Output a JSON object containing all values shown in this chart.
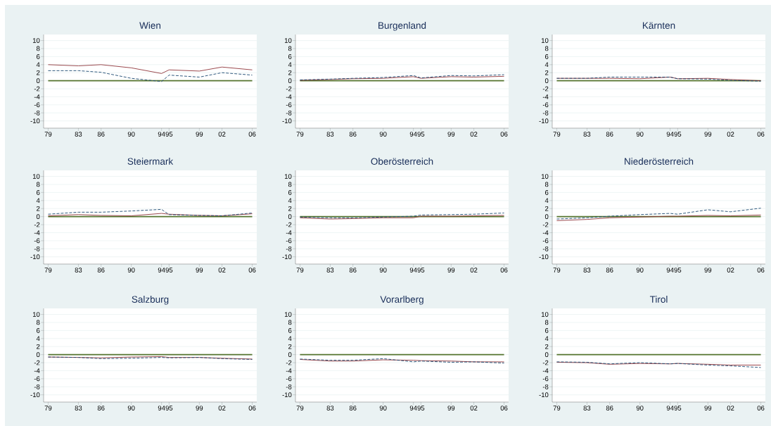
{
  "chart_data": [
    {
      "type": "line",
      "title": "Wien",
      "x": [
        1979,
        1983,
        1986,
        1990,
        1994,
        1995,
        1999,
        2002,
        2006
      ],
      "xlim": [
        1978.4,
        2006.6
      ],
      "xticks": [
        {
          "value": 1979,
          "label": "79"
        },
        {
          "value": 1983,
          "label": "83"
        },
        {
          "value": 1986,
          "label": "86"
        },
        {
          "value": 1990,
          "label": "90"
        },
        {
          "value": 1994,
          "label": "94"
        },
        {
          "value": 1995,
          "label": "95"
        },
        {
          "value": 1999,
          "label": "99"
        },
        {
          "value": 2002,
          "label": "02"
        },
        {
          "value": 2006,
          "label": "06"
        }
      ],
      "ylim": [
        -11.8,
        11.5
      ],
      "yticks": [
        -10,
        -8,
        -6,
        -4,
        -2,
        0,
        2,
        4,
        6,
        8,
        10
      ],
      "grid": "y",
      "series": [
        {
          "color": "#90353b",
          "line_style": "solid",
          "values": [
            4.0,
            3.7,
            4.0,
            3.2,
            1.8,
            2.7,
            2.4,
            3.4,
            2.7
          ]
        },
        {
          "color": "#1a476f",
          "line_style": "dashed",
          "values": [
            2.5,
            2.5,
            2.1,
            0.6,
            -0.2,
            1.4,
            0.9,
            2.0,
            1.4
          ]
        }
      ],
      "ref_lines": [
        {
          "axis": "y",
          "value": 0,
          "color": "#55752f"
        }
      ]
    },
    {
      "type": "line",
      "title": "Burgenland",
      "x": [
        1979,
        1983,
        1986,
        1990,
        1994,
        1995,
        1999,
        2002,
        2006
      ],
      "xlim": [
        1978.4,
        2006.6
      ],
      "xticks": [
        {
          "value": 1979,
          "label": "79"
        },
        {
          "value": 1983,
          "label": "83"
        },
        {
          "value": 1986,
          "label": "86"
        },
        {
          "value": 1990,
          "label": "90"
        },
        {
          "value": 1994,
          "label": "94"
        },
        {
          "value": 1995,
          "label": "95"
        },
        {
          "value": 1999,
          "label": "99"
        },
        {
          "value": 2002,
          "label": "02"
        },
        {
          "value": 2006,
          "label": "06"
        }
      ],
      "ylim": [
        -11.8,
        11.5
      ],
      "yticks": [
        -10,
        -8,
        -6,
        -4,
        -2,
        0,
        2,
        4,
        6,
        8,
        10
      ],
      "grid": "y",
      "series": [
        {
          "color": "#90353b",
          "line_style": "solid",
          "values": [
            0.1,
            0.3,
            0.5,
            0.6,
            1.0,
            0.6,
            1.0,
            0.9,
            1.1
          ]
        },
        {
          "color": "#1a476f",
          "line_style": "dashed",
          "values": [
            0.2,
            0.4,
            0.6,
            0.8,
            1.3,
            0.7,
            1.3,
            1.2,
            1.5
          ]
        }
      ],
      "ref_lines": [
        {
          "axis": "y",
          "value": 0,
          "color": "#55752f"
        }
      ]
    },
    {
      "type": "line",
      "title": "Kärnten",
      "x": [
        1979,
        1983,
        1986,
        1990,
        1994,
        1995,
        1999,
        2002,
        2006
      ],
      "xlim": [
        1978.4,
        2006.6
      ],
      "xticks": [
        {
          "value": 1979,
          "label": "79"
        },
        {
          "value": 1983,
          "label": "83"
        },
        {
          "value": 1986,
          "label": "86"
        },
        {
          "value": 1990,
          "label": "90"
        },
        {
          "value": 1994,
          "label": "94"
        },
        {
          "value": 1995,
          "label": "95"
        },
        {
          "value": 1999,
          "label": "99"
        },
        {
          "value": 2002,
          "label": "02"
        },
        {
          "value": 2006,
          "label": "06"
        }
      ],
      "ylim": [
        -11.8,
        11.5
      ],
      "yticks": [
        -10,
        -8,
        -6,
        -4,
        -2,
        0,
        2,
        4,
        6,
        8,
        10
      ],
      "grid": "y",
      "series": [
        {
          "color": "#90353b",
          "line_style": "solid",
          "values": [
            0.6,
            0.6,
            0.6,
            0.5,
            0.9,
            0.5,
            0.6,
            0.3,
            0.0
          ]
        },
        {
          "color": "#1a476f",
          "line_style": "dashed",
          "values": [
            0.6,
            0.6,
            0.9,
            0.9,
            0.9,
            0.5,
            0.4,
            0.1,
            -0.1
          ]
        }
      ],
      "ref_lines": [
        {
          "axis": "y",
          "value": 0,
          "color": "#55752f"
        }
      ]
    },
    {
      "type": "line",
      "title": "Steiermark",
      "x": [
        1979,
        1983,
        1986,
        1990,
        1994,
        1995,
        1999,
        2002,
        2006
      ],
      "xlim": [
        1978.4,
        2006.6
      ],
      "xticks": [
        {
          "value": 1979,
          "label": "79"
        },
        {
          "value": 1983,
          "label": "83"
        },
        {
          "value": 1986,
          "label": "86"
        },
        {
          "value": 1990,
          "label": "90"
        },
        {
          "value": 1994,
          "label": "94"
        },
        {
          "value": 1995,
          "label": "95"
        },
        {
          "value": 1999,
          "label": "99"
        },
        {
          "value": 2002,
          "label": "02"
        },
        {
          "value": 2006,
          "label": "06"
        }
      ],
      "ylim": [
        -11.8,
        11.5
      ],
      "yticks": [
        -10,
        -8,
        -6,
        -4,
        -2,
        0,
        2,
        4,
        6,
        8,
        10
      ],
      "grid": "y",
      "series": [
        {
          "color": "#90353b",
          "line_style": "solid",
          "values": [
            0.2,
            0.5,
            0.3,
            0.2,
            0.8,
            0.6,
            0.3,
            0.2,
            0.7
          ]
        },
        {
          "color": "#1a476f",
          "line_style": "dashed",
          "values": [
            0.6,
            1.1,
            1.1,
            1.4,
            1.8,
            0.5,
            0.3,
            0.2,
            0.9
          ]
        }
      ],
      "ref_lines": [
        {
          "axis": "y",
          "value": 0,
          "color": "#55752f"
        }
      ]
    },
    {
      "type": "line",
      "title": "Oberösterreich",
      "x": [
        1979,
        1983,
        1986,
        1990,
        1994,
        1995,
        1999,
        2002,
        2006
      ],
      "xlim": [
        1978.4,
        2006.6
      ],
      "xticks": [
        {
          "value": 1979,
          "label": "79"
        },
        {
          "value": 1983,
          "label": "83"
        },
        {
          "value": 1986,
          "label": "86"
        },
        {
          "value": 1990,
          "label": "90"
        },
        {
          "value": 1994,
          "label": "94"
        },
        {
          "value": 1995,
          "label": "95"
        },
        {
          "value": 1999,
          "label": "99"
        },
        {
          "value": 2002,
          "label": "02"
        },
        {
          "value": 2006,
          "label": "06"
        }
      ],
      "ylim": [
        -11.8,
        11.5
      ],
      "yticks": [
        -10,
        -8,
        -6,
        -4,
        -2,
        0,
        2,
        4,
        6,
        8,
        10
      ],
      "grid": "y",
      "series": [
        {
          "color": "#90353b",
          "line_style": "solid",
          "values": [
            -0.3,
            -0.6,
            -0.5,
            -0.3,
            -0.3,
            0.1,
            0.1,
            0.2,
            0.3
          ]
        },
        {
          "color": "#1a476f",
          "line_style": "dashed",
          "values": [
            -0.1,
            -0.3,
            -0.3,
            -0.1,
            0.1,
            0.4,
            0.5,
            0.6,
            0.9
          ]
        }
      ],
      "ref_lines": [
        {
          "axis": "y",
          "value": 0,
          "color": "#55752f"
        }
      ]
    },
    {
      "type": "line",
      "title": "Niederösterreich",
      "x": [
        1979,
        1983,
        1986,
        1990,
        1994,
        1995,
        1999,
        2002,
        2006
      ],
      "xlim": [
        1978.4,
        2006.6
      ],
      "xticks": [
        {
          "value": 1979,
          "label": "79"
        },
        {
          "value": 1983,
          "label": "83"
        },
        {
          "value": 1986,
          "label": "86"
        },
        {
          "value": 1990,
          "label": "90"
        },
        {
          "value": 1994,
          "label": "94"
        },
        {
          "value": 1995,
          "label": "95"
        },
        {
          "value": 1999,
          "label": "99"
        },
        {
          "value": 2002,
          "label": "02"
        },
        {
          "value": 2006,
          "label": "06"
        }
      ],
      "ylim": [
        -11.8,
        11.5
      ],
      "yticks": [
        -10,
        -8,
        -6,
        -4,
        -2,
        0,
        2,
        4,
        6,
        8,
        10
      ],
      "grid": "y",
      "series": [
        {
          "color": "#90353b",
          "line_style": "solid",
          "values": [
            -1.0,
            -0.7,
            -0.3,
            -0.1,
            0.1,
            0.1,
            0.3,
            0.2,
            0.4
          ]
        },
        {
          "color": "#1a476f",
          "line_style": "dashed",
          "values": [
            -0.6,
            -0.3,
            0.1,
            0.5,
            0.8,
            0.6,
            1.7,
            1.2,
            2.1
          ]
        }
      ],
      "ref_lines": [
        {
          "axis": "y",
          "value": 0,
          "color": "#55752f"
        }
      ]
    },
    {
      "type": "line",
      "title": "Salzburg",
      "x": [
        1979,
        1983,
        1986,
        1990,
        1994,
        1995,
        1999,
        2002,
        2006
      ],
      "xlim": [
        1978.4,
        2006.6
      ],
      "xticks": [
        {
          "value": 1979,
          "label": "79"
        },
        {
          "value": 1983,
          "label": "83"
        },
        {
          "value": 1986,
          "label": "86"
        },
        {
          "value": 1990,
          "label": "90"
        },
        {
          "value": 1994,
          "label": "94"
        },
        {
          "value": 1995,
          "label": "95"
        },
        {
          "value": 1999,
          "label": "99"
        },
        {
          "value": 2002,
          "label": "02"
        },
        {
          "value": 2006,
          "label": "06"
        }
      ],
      "ylim": [
        -11.8,
        11.5
      ],
      "yticks": [
        -10,
        -8,
        -6,
        -4,
        -2,
        0,
        2,
        4,
        6,
        8,
        10
      ],
      "grid": "y",
      "series": [
        {
          "color": "#90353b",
          "line_style": "solid",
          "values": [
            -0.6,
            -0.7,
            -0.8,
            -0.6,
            -0.5,
            -0.7,
            -0.7,
            -0.9,
            -1.1
          ]
        },
        {
          "color": "#1a476f",
          "line_style": "dashed",
          "values": [
            -0.6,
            -0.7,
            -1.0,
            -0.9,
            -0.7,
            -0.8,
            -0.7,
            -1.0,
            -1.2
          ]
        }
      ],
      "ref_lines": [
        {
          "axis": "y",
          "value": 0,
          "color": "#55752f"
        }
      ]
    },
    {
      "type": "line",
      "title": "Vorarlberg",
      "x": [
        1979,
        1983,
        1986,
        1990,
        1994,
        1995,
        1999,
        2002,
        2006
      ],
      "xlim": [
        1978.4,
        2006.6
      ],
      "xticks": [
        {
          "value": 1979,
          "label": "79"
        },
        {
          "value": 1983,
          "label": "83"
        },
        {
          "value": 1986,
          "label": "86"
        },
        {
          "value": 1990,
          "label": "90"
        },
        {
          "value": 1994,
          "label": "94"
        },
        {
          "value": 1995,
          "label": "95"
        },
        {
          "value": 1999,
          "label": "99"
        },
        {
          "value": 2002,
          "label": "02"
        },
        {
          "value": 2006,
          "label": "06"
        }
      ],
      "ylim": [
        -11.8,
        11.5
      ],
      "yticks": [
        -10,
        -8,
        -6,
        -4,
        -2,
        0,
        2,
        4,
        6,
        8,
        10
      ],
      "grid": "y",
      "series": [
        {
          "color": "#90353b",
          "line_style": "solid",
          "values": [
            -1.2,
            -1.6,
            -1.6,
            -1.3,
            -1.4,
            -1.5,
            -1.6,
            -1.8,
            -1.8
          ]
        },
        {
          "color": "#1a476f",
          "line_style": "dashed",
          "values": [
            -1.1,
            -1.4,
            -1.4,
            -1.0,
            -1.8,
            -1.6,
            -1.9,
            -1.8,
            -2.1
          ]
        }
      ],
      "ref_lines": [
        {
          "axis": "y",
          "value": 0,
          "color": "#55752f"
        }
      ]
    },
    {
      "type": "line",
      "title": "Tirol",
      "x": [
        1979,
        1983,
        1986,
        1990,
        1994,
        1995,
        1999,
        2002,
        2006
      ],
      "xlim": [
        1978.4,
        2006.6
      ],
      "xticks": [
        {
          "value": 1979,
          "label": "79"
        },
        {
          "value": 1983,
          "label": "83"
        },
        {
          "value": 1986,
          "label": "86"
        },
        {
          "value": 1990,
          "label": "90"
        },
        {
          "value": 1994,
          "label": "94"
        },
        {
          "value": 1995,
          "label": "95"
        },
        {
          "value": 1999,
          "label": "99"
        },
        {
          "value": 2002,
          "label": "02"
        },
        {
          "value": 2006,
          "label": "06"
        }
      ],
      "ylim": [
        -11.8,
        11.5
      ],
      "yticks": [
        -10,
        -8,
        -6,
        -4,
        -2,
        0,
        2,
        4,
        6,
        8,
        10
      ],
      "grid": "y",
      "series": [
        {
          "color": "#90353b",
          "line_style": "solid",
          "values": [
            -1.9,
            -2.0,
            -2.4,
            -2.2,
            -2.3,
            -2.2,
            -2.4,
            -2.6,
            -2.6
          ]
        },
        {
          "color": "#1a476f",
          "line_style": "dashed",
          "values": [
            -1.8,
            -1.9,
            -2.3,
            -2.0,
            -2.3,
            -2.2,
            -2.6,
            -2.8,
            -3.2
          ]
        }
      ],
      "ref_lines": [
        {
          "axis": "y",
          "value": 0,
          "color": "#55752f"
        }
      ]
    }
  ]
}
